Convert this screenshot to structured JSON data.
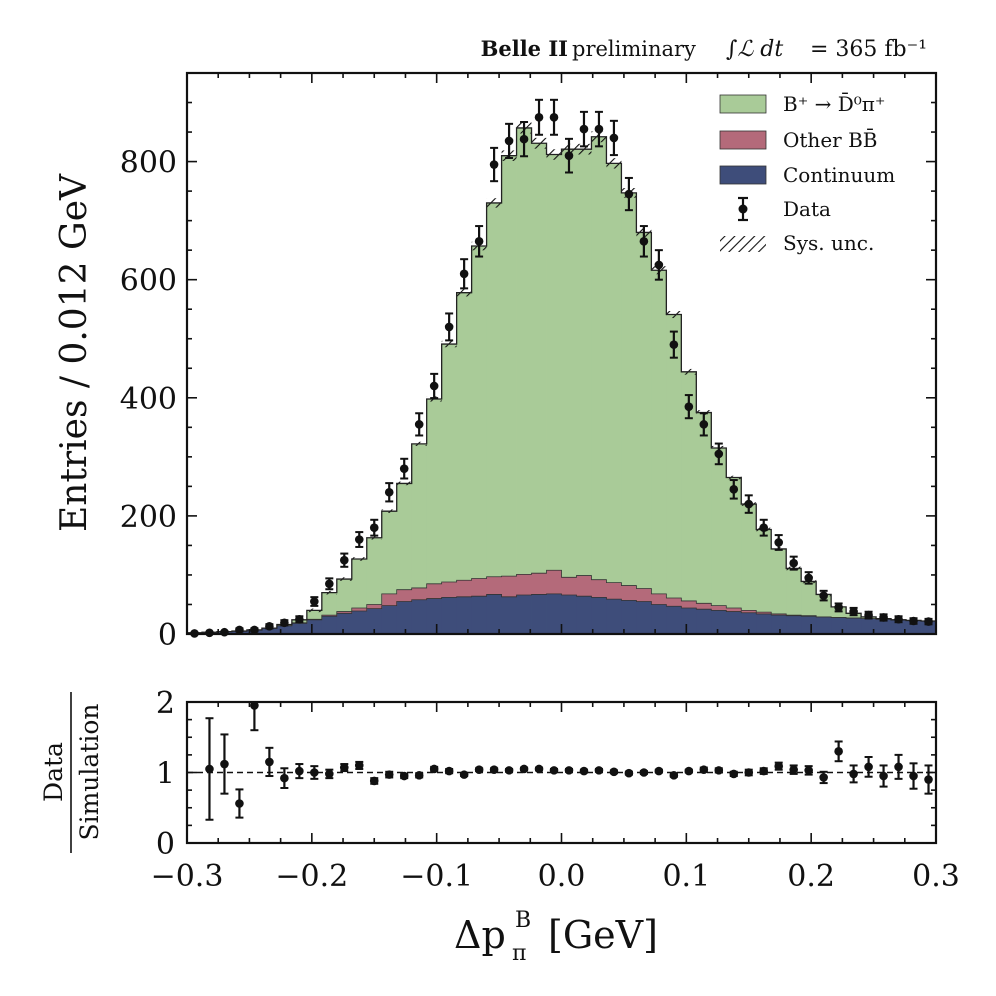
{
  "chart_data": {
    "type": "histogram",
    "header": {
      "experiment": "Belle II",
      "status": "preliminary",
      "lumi_symbol": "∫ℒ dt",
      "lumi_value": "= 365 fb⁻¹"
    },
    "xlabel": "Δp",
    "xlabel_sub": "π",
    "xlabel_sup": "B",
    "xlabel_unit": "[GeV]",
    "xlim": [
      -0.3,
      0.3
    ],
    "bin_width": 0.012,
    "x_ticks": [
      "−0.3",
      "−0.2",
      "−0.1",
      "0.0",
      "0.1",
      "0.2",
      "0.3"
    ],
    "x_tick_values": [
      -0.3,
      -0.2,
      -0.1,
      0.0,
      0.1,
      0.2,
      0.3
    ],
    "main": {
      "ylabel": "Entries / 0.012 GeV",
      "ylim": [
        0,
        950
      ],
      "y_ticks": [
        "0",
        "200",
        "400",
        "600",
        "800"
      ],
      "y_tick_values": [
        0,
        200,
        400,
        600,
        800
      ],
      "series": [
        {
          "name": "Continuum",
          "color": "#3e4d7a",
          "values": [
            2,
            3,
            4,
            5,
            7,
            10,
            14,
            18,
            24,
            30,
            35,
            39,
            43,
            48,
            55,
            58,
            60,
            62,
            63,
            64,
            67,
            63,
            66,
            67,
            68,
            66,
            64,
            62,
            59,
            57,
            55,
            50,
            47,
            44,
            42,
            40,
            38,
            36,
            34,
            32,
            31,
            30,
            29,
            28,
            27,
            26,
            25,
            24,
            23,
            22
          ]
        },
        {
          "name": "Other BB̄",
          "color": "#b46a7a",
          "values": [
            0,
            0,
            0,
            0,
            0,
            0,
            0,
            1,
            1,
            2,
            3,
            5,
            7,
            20,
            20,
            20,
            25,
            26,
            28,
            30,
            30,
            35,
            35,
            36,
            40,
            30,
            35,
            30,
            28,
            25,
            22,
            18,
            14,
            12,
            10,
            8,
            6,
            4,
            3,
            2,
            1,
            1,
            0,
            0,
            0,
            0,
            0,
            0,
            0,
            0
          ]
        },
        {
          "name": "B⁺ → D̄⁰π⁺",
          "color": "#a9cb98",
          "values": [
            0,
            0,
            0,
            0,
            0,
            0,
            2,
            5,
            15,
            38,
            55,
            83,
            113,
            140,
            180,
            244,
            313,
            403,
            487,
            563,
            633,
            712,
            756,
            728,
            704,
            725,
            722,
            750,
            710,
            665,
            603,
            548,
            480,
            388,
            323,
            267,
            221,
            180,
            140,
            110,
            79,
            58,
            38,
            18,
            8,
            3,
            1,
            0,
            0,
            0
          ]
        }
      ],
      "data": {
        "name": "Data",
        "values": [
          1,
          2,
          3,
          7,
          7,
          13,
          19,
          25,
          55,
          85,
          125,
          160,
          180,
          240,
          280,
          355,
          420,
          520,
          610,
          665,
          795,
          835,
          838,
          875,
          875,
          810,
          855,
          855,
          840,
          745,
          665,
          625,
          490,
          385,
          355,
          305,
          245,
          220,
          180,
          155,
          120,
          95,
          65,
          45,
          38,
          32,
          28,
          25,
          22,
          21
        ],
        "errors": [
          1,
          1.4,
          1.7,
          2.6,
          2.6,
          3.6,
          4.4,
          5,
          7.4,
          9.2,
          11.2,
          12.6,
          13.4,
          15.5,
          16.7,
          18.8,
          20.5,
          22.8,
          24.7,
          25.8,
          28.2,
          28.9,
          29,
          29.6,
          29.6,
          28.5,
          29.2,
          29.2,
          29,
          27.3,
          25.8,
          25,
          22.1,
          19.6,
          18.8,
          17.5,
          15.7,
          14.8,
          13.4,
          12.5,
          11,
          9.7,
          8.1,
          6.7,
          6.2,
          5.7,
          5.3,
          5,
          4.7,
          4.6
        ]
      },
      "legend": {
        "position": "top-right",
        "entries": [
          "B⁺ → D̄⁰π⁺",
          "Other BB̄",
          "Continuum",
          "Data",
          "Sys. unc."
        ]
      }
    },
    "ratio": {
      "ylabel_num": "Data",
      "ylabel_den": "Simulation",
      "ylim": [
        0,
        2
      ],
      "y_ticks": [
        "0",
        "1",
        "2"
      ],
      "y_tick_values": [
        0,
        1,
        2
      ],
      "values": [
        null,
        1.05,
        1.12,
        0.56,
        1.95,
        1.15,
        0.92,
        1.02,
        1.0,
        0.98,
        1.07,
        1.1,
        0.88,
        0.97,
        0.95,
        0.96,
        1.05,
        1.02,
        0.97,
        1.04,
        1.04,
        1.03,
        1.05,
        1.05,
        1.03,
        1.03,
        1.02,
        1.03,
        1.01,
        0.99,
        1.0,
        1.02,
        0.96,
        1.02,
        1.04,
        1.03,
        0.98,
        1.0,
        1.02,
        1.09,
        1.04,
        1.03,
        0.93,
        1.3,
        0.98,
        1.08,
        0.95,
        1.08,
        0.95,
        0.9
      ],
      "errors": [
        null,
        0.72,
        0.42,
        0.2,
        0.35,
        0.2,
        0.14,
        0.1,
        0.09,
        0.06,
        0.05,
        0.05,
        0.04,
        0.04,
        0.03,
        0.03,
        0.03,
        0.03,
        0.02,
        0.02,
        0.02,
        0.02,
        0.02,
        0.02,
        0.02,
        0.02,
        0.02,
        0.02,
        0.02,
        0.02,
        0.02,
        0.02,
        0.02,
        0.02,
        0.03,
        0.03,
        0.03,
        0.04,
        0.04,
        0.05,
        0.06,
        0.06,
        0.08,
        0.14,
        0.12,
        0.14,
        0.15,
        0.17,
        0.18,
        0.2
      ]
    }
  }
}
